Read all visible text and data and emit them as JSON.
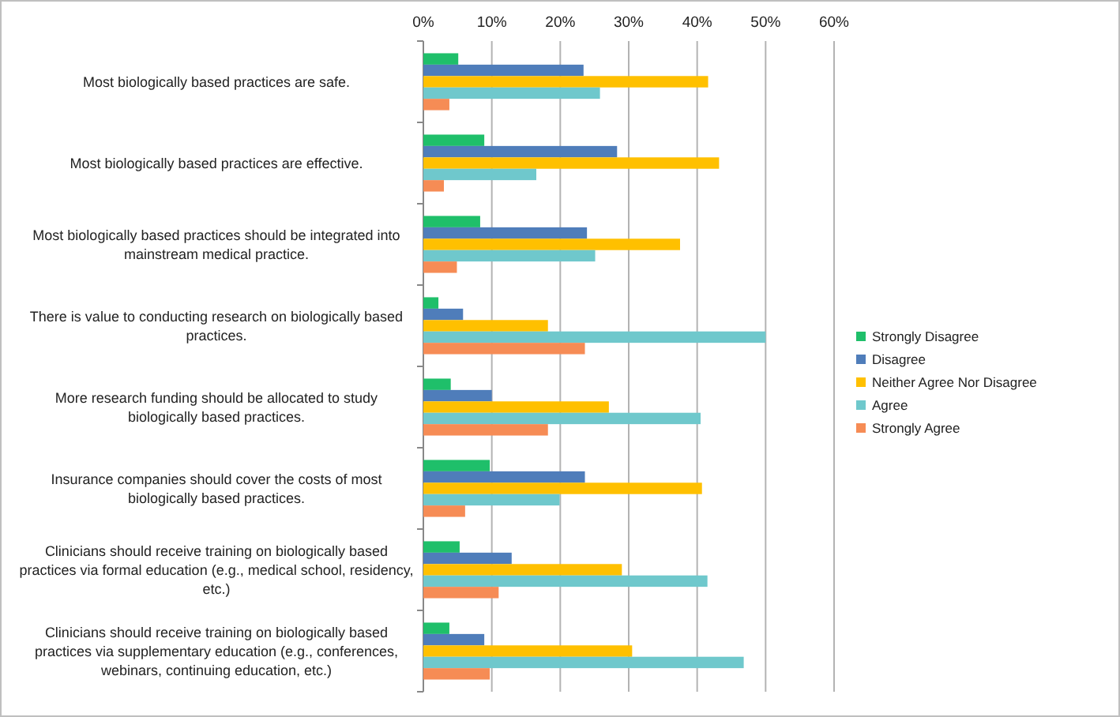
{
  "chart_data": {
    "type": "bar",
    "orientation": "horizontal",
    "categories": [
      "Most biologically based practices are safe.",
      "Most biologically based practices are effective.",
      "Most biologically based practices should be integrated into mainstream medical practice.",
      "There is value to conducting research on biologically based practices.",
      "More research funding should be allocated to study biologically based practices.",
      "Insurance companies should cover the costs of most biologically based practices.",
      "Clinicians should receive training on biologically based practices via formal education (e.g., medical school, residency, etc.)",
      "Clinicians should receive training on biologically based practices via supplementary education (e.g., conferences, webinars, continuing education, etc.)"
    ],
    "series": [
      {
        "name": "Strongly Disagree",
        "color": "#1fbf6a",
        "values": [
          5.1,
          8.9,
          8.3,
          2.2,
          4.0,
          9.7,
          5.3,
          3.8
        ]
      },
      {
        "name": "Disagree",
        "color": "#4f7dba",
        "values": [
          23.4,
          28.3,
          23.9,
          5.8,
          10,
          23.6,
          12.9,
          8.9
        ]
      },
      {
        "name": "Neither Agree Nor Disagree",
        "color": "#ffc000",
        "values": [
          41.6,
          43.2,
          37.5,
          18.2,
          27.1,
          40.7,
          29.0,
          30.5
        ]
      },
      {
        "name": "Agree",
        "color": "#6fc8cc",
        "values": [
          25.8,
          16.5,
          25.1,
          50,
          40.5,
          19.9,
          41.5,
          46.8
        ]
      },
      {
        "name": "Strongly Agree",
        "color": "#f68c55",
        "values": [
          3.8,
          3.0,
          4.9,
          23.6,
          18.2,
          6.1,
          11.0,
          9.7
        ]
      }
    ],
    "xlim": [
      0,
      60
    ],
    "xticks": [
      {
        "value": 0,
        "label": "0%"
      },
      {
        "value": 10,
        "label": "10%"
      },
      {
        "value": 20,
        "label": "20%"
      },
      {
        "value": 30,
        "label": "30%"
      },
      {
        "value": 40,
        "label": "40%"
      },
      {
        "value": 50,
        "label": "50%"
      },
      {
        "value": 60,
        "label": "60%"
      }
    ],
    "grid": "x",
    "legend": "right"
  }
}
